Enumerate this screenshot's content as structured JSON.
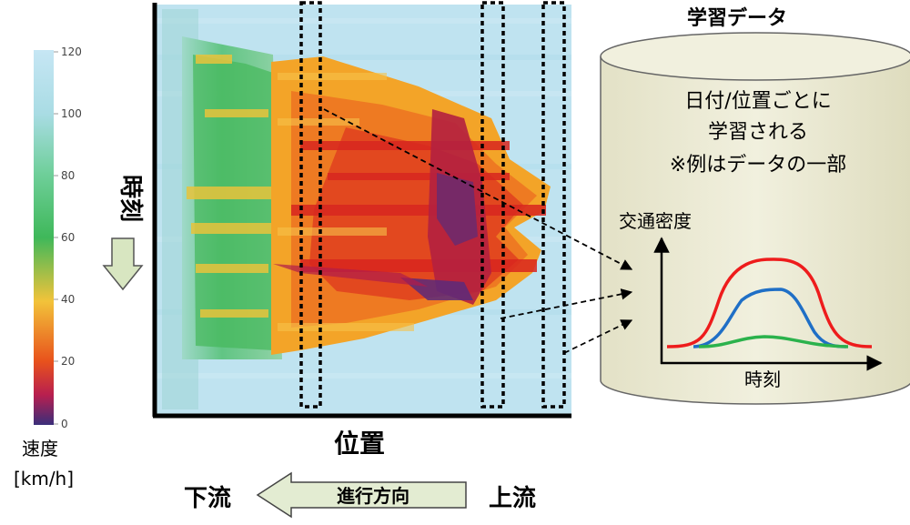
{
  "colorbar": {
    "ticks": [
      "120",
      "100",
      "80",
      "60",
      "40",
      "20",
      "0"
    ],
    "label_line1": "速度",
    "label_line2": "[km/h]"
  },
  "time_label": "時刻",
  "position_label": "位置",
  "direction": {
    "downstream": "下流",
    "arrow_label": "進行方向",
    "upstream": "上流"
  },
  "database": {
    "title": "学習データ",
    "line1": "日付/位置ごとに",
    "line2": "学習される",
    "line3": "※例はデータの一部",
    "ylabel": "交通密度",
    "xlabel": "時刻"
  },
  "colors": {
    "red_curve": "#ee1c1c",
    "blue_curve": "#1f6fc6",
    "green_curve": "#2bb24c",
    "cylinder_fill": "#ecebd7",
    "arrow_fill": "#e3ecd2",
    "heat_free_flow": "#bfe3f0"
  }
}
